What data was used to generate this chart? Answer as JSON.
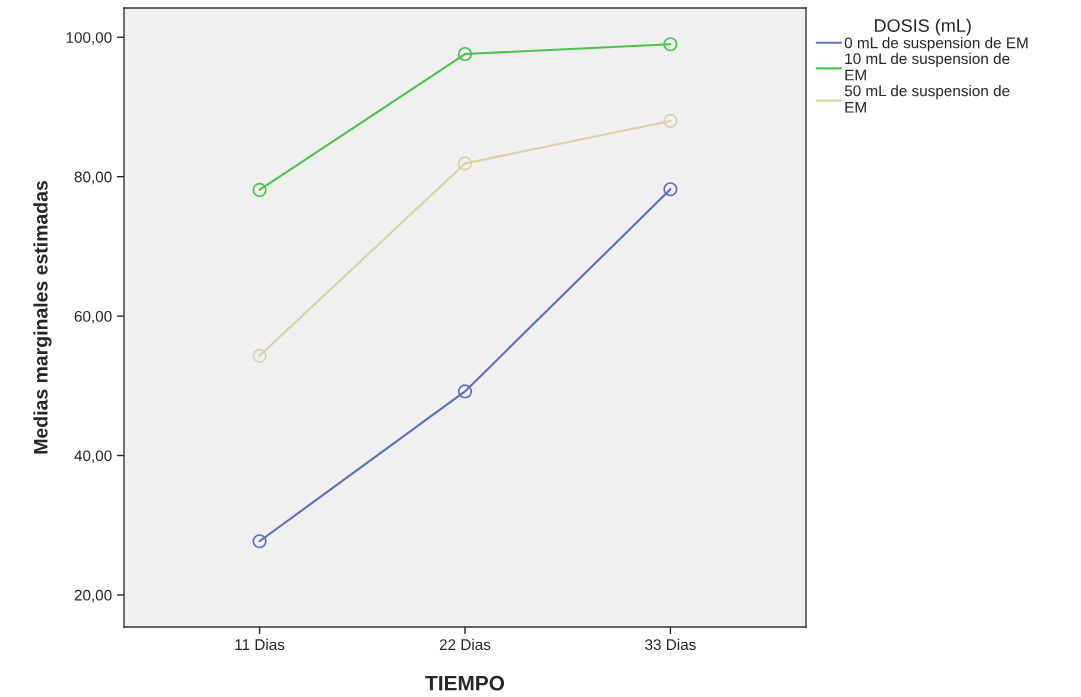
{
  "chart_data": {
    "type": "line",
    "xlabel": "TIEMPO",
    "ylabel": "Medias marginales estimadas",
    "legend_title": "DOSIS (mL)",
    "categories": [
      "11 Dias",
      "22 Dias",
      "33 Dias"
    ],
    "series": [
      {
        "name": "0 mL de suspension de EM",
        "color": "#5b6fc0",
        "values": [
          27.7,
          49.2,
          78.2
        ]
      },
      {
        "name": "10 mL de suspension de\nEM",
        "color": "#4cc34c",
        "values": [
          78.1,
          97.6,
          99.0
        ]
      },
      {
        "name": "50 mL de suspension de\nEM",
        "color": "#d8d4a0",
        "values": [
          54.3,
          81.9,
          88.0
        ]
      }
    ],
    "ylim": [
      15.4,
      104.2
    ],
    "yticks": [
      {
        "value": 20,
        "label": "20,00"
      },
      {
        "value": 40,
        "label": "40,00"
      },
      {
        "value": 60,
        "label": "60,00"
      },
      {
        "value": 80,
        "label": "80,00"
      },
      {
        "value": 100,
        "label": "100,00"
      }
    ],
    "marker": "circle",
    "grid": false,
    "legend": "top right"
  }
}
